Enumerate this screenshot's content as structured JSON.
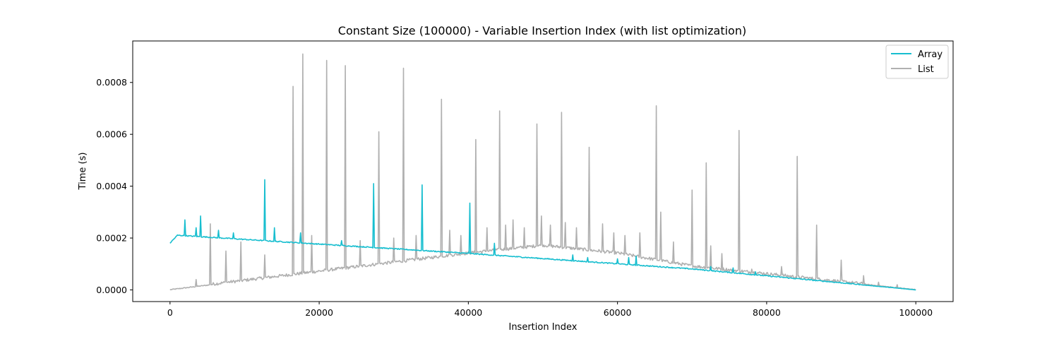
{
  "chart_data": {
    "type": "line",
    "title": "Constant Size (100000) - Variable Insertion Index (with list optimization)",
    "xlabel": "Insertion Index",
    "ylabel": "Time (s)",
    "xlim": [
      -5000,
      105000
    ],
    "ylim": [
      -4.5e-05,
      0.00096
    ],
    "x_ticks": [
      {
        "value": 0,
        "label": "0"
      },
      {
        "value": 20000,
        "label": "20000"
      },
      {
        "value": 40000,
        "label": "40000"
      },
      {
        "value": 60000,
        "label": "60000"
      },
      {
        "value": 80000,
        "label": "80000"
      },
      {
        "value": 100000,
        "label": "100000"
      }
    ],
    "y_ticks": [
      {
        "value": 0,
        "label": "0.0000"
      },
      {
        "value": 0.0002,
        "label": "0.0002"
      },
      {
        "value": 0.0004,
        "label": "0.0004"
      },
      {
        "value": 0.0006,
        "label": "0.0006"
      },
      {
        "value": 0.0008,
        "label": "0.0008"
      }
    ],
    "grid": false,
    "legend_position": "top-right",
    "series": [
      {
        "name": "Array",
        "color": "#17becf",
        "baseline": [
          [
            0,
            0.00018
          ],
          [
            1000,
            0.00021
          ],
          [
            40000,
            0.00014
          ],
          [
            70000,
            8e-05
          ],
          [
            100000,
            0.0
          ]
        ],
        "spikes": [
          [
            2000,
            0.00027
          ],
          [
            3500,
            0.00024
          ],
          [
            4100,
            0.000285
          ],
          [
            6500,
            0.00023
          ],
          [
            8500,
            0.00022
          ],
          [
            12700,
            0.000425
          ],
          [
            14000,
            0.00024
          ],
          [
            17500,
            0.00022
          ],
          [
            23000,
            0.00019
          ],
          [
            27300,
            0.00041
          ],
          [
            33800,
            0.000405
          ],
          [
            40200,
            0.000335
          ],
          [
            43500,
            0.00018
          ],
          [
            54000,
            0.000135
          ],
          [
            56000,
            0.000125
          ],
          [
            60000,
            0.00012
          ],
          [
            61500,
            0.000125
          ],
          [
            62500,
            0.00013
          ],
          [
            72500,
            9e-05
          ],
          [
            75500,
            8.5e-05
          ],
          [
            78500,
            7e-05
          ]
        ]
      },
      {
        "name": "List",
        "color": "#b0b0b0",
        "baseline": [
          [
            0,
            0.0
          ],
          [
            40000,
            0.00014
          ],
          [
            50000,
            0.00017
          ],
          [
            60000,
            0.00014
          ],
          [
            70000,
            9e-05
          ],
          [
            100000,
            0.0
          ]
        ],
        "spikes": [
          [
            3500,
            4e-05
          ],
          [
            5400,
            0.000255
          ],
          [
            7500,
            0.00015
          ],
          [
            9500,
            0.000185
          ],
          [
            12700,
            0.000135
          ],
          [
            16500,
            0.000785
          ],
          [
            17800,
            0.00091
          ],
          [
            19000,
            0.00021
          ],
          [
            21000,
            0.000885
          ],
          [
            23500,
            0.000865
          ],
          [
            25500,
            0.00019
          ],
          [
            28000,
            0.00061
          ],
          [
            30000,
            0.0002
          ],
          [
            31300,
            0.000855
          ],
          [
            33000,
            0.00021
          ],
          [
            36400,
            0.000735
          ],
          [
            37500,
            0.00023
          ],
          [
            39000,
            0.00021
          ],
          [
            41000,
            0.00058
          ],
          [
            42500,
            0.00024
          ],
          [
            44200,
            0.00069
          ],
          [
            45000,
            0.00025
          ],
          [
            46000,
            0.00027
          ],
          [
            47500,
            0.00024
          ],
          [
            49200,
            0.00064
          ],
          [
            49800,
            0.000285
          ],
          [
            51000,
            0.00025
          ],
          [
            52500,
            0.000685
          ],
          [
            53000,
            0.00026
          ],
          [
            54500,
            0.00024
          ],
          [
            56200,
            0.00055
          ],
          [
            58000,
            0.000255
          ],
          [
            59500,
            0.00022
          ],
          [
            61000,
            0.00021
          ],
          [
            63000,
            0.00022
          ],
          [
            65200,
            0.00071
          ],
          [
            65800,
            0.0003
          ],
          [
            67500,
            0.000185
          ],
          [
            70000,
            0.000385
          ],
          [
            71900,
            0.00049
          ],
          [
            72500,
            0.00017
          ],
          [
            74000,
            0.00014
          ],
          [
            76300,
            0.000615
          ],
          [
            78000,
            8e-05
          ],
          [
            82000,
            9e-05
          ],
          [
            84100,
            0.000515
          ],
          [
            86700,
            0.00025
          ],
          [
            90000,
            0.000115
          ],
          [
            93000,
            5.5e-05
          ],
          [
            95000,
            3e-05
          ],
          [
            97500,
            2e-05
          ]
        ]
      }
    ]
  }
}
